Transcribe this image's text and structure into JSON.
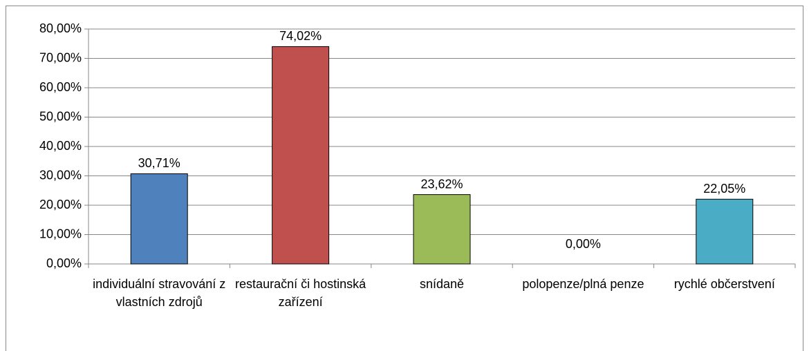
{
  "chart_data": {
    "type": "bar",
    "categories": [
      "individuální stravování z vlastních zdrojů",
      "restaurační či hostinská zařízení",
      "snídaně",
      "polopenze/plná penze",
      "rychlé občerstvení"
    ],
    "values": [
      30.71,
      74.02,
      23.62,
      0,
      22.05
    ],
    "value_labels": [
      "30,71%",
      "74,02%",
      "23,62%",
      "0,00%",
      "22,05%"
    ],
    "colors": [
      "#4f81bd",
      "#c0504d",
      "#9bbb59",
      "#8064a2",
      "#4bacc6"
    ],
    "ylim": [
      0,
      80
    ],
    "yticks": [
      {
        "value": 0,
        "label": "0,00%"
      },
      {
        "value": 10,
        "label": "10,00%"
      },
      {
        "value": 20,
        "label": "20,00%"
      },
      {
        "value": 30,
        "label": "30,00%"
      },
      {
        "value": 40,
        "label": "40,00%"
      },
      {
        "value": 50,
        "label": "50,00%"
      },
      {
        "value": 60,
        "label": "60,00%"
      },
      {
        "value": 70,
        "label": "70,00%"
      },
      {
        "value": 80,
        "label": "80,00%"
      }
    ],
    "grid": true
  }
}
